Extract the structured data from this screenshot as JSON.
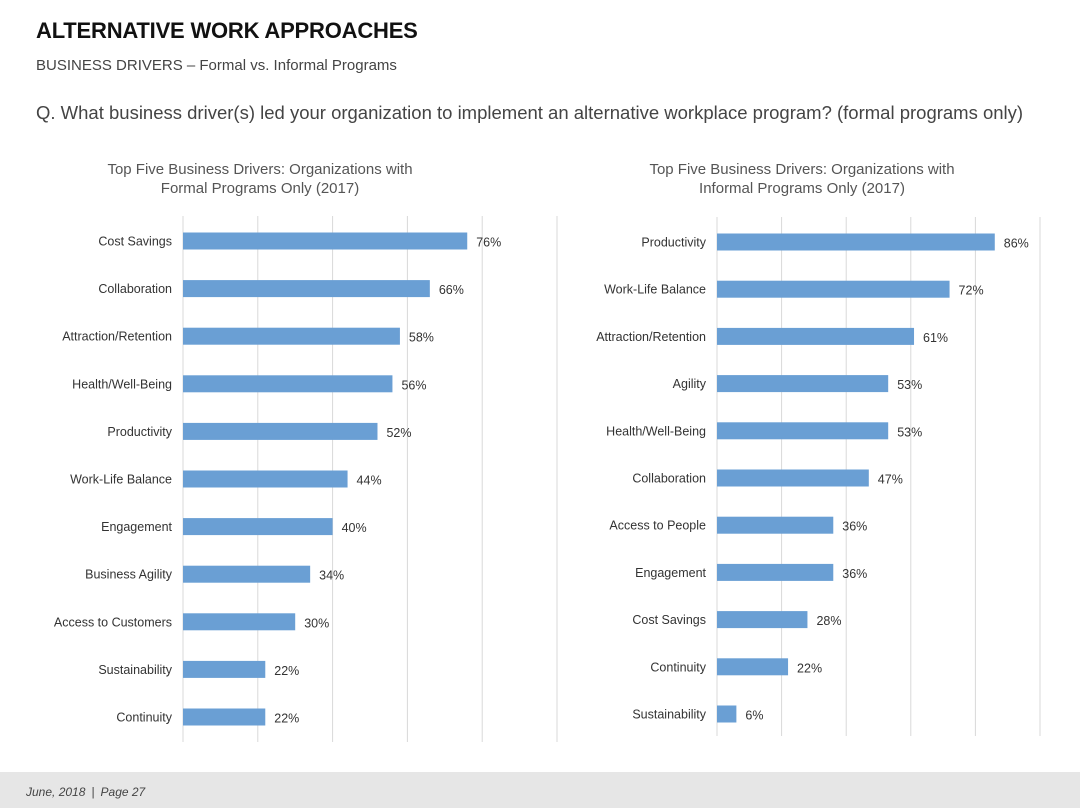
{
  "header": {
    "title": "ALTERNATIVE WORK APPROACHES",
    "subtitle": "BUSINESS DRIVERS – Formal vs. Informal Programs",
    "question": "Q. What business driver(s) led your organization to implement an alternative workplace program? (formal programs only)"
  },
  "footer": {
    "date": "June, 2018",
    "separator": "|",
    "page": "Page 27"
  },
  "colors": {
    "bar": "#6a9fd4",
    "grid": "#d9d9d9",
    "text": "#333333"
  },
  "chart_data": [
    {
      "type": "bar",
      "orientation": "horizontal",
      "title_line1": "Top Five Business Drivers: Organizations with",
      "title_line2": "Formal Programs Only (2017)",
      "categories": [
        "Cost Savings",
        "Collaboration",
        "Attraction/Retention",
        "Health/Well-Being",
        "Productivity",
        "Work-Life Balance",
        "Engagement",
        "Business Agility",
        "Access to Customers",
        "Sustainability",
        "Continuity"
      ],
      "values": [
        76,
        66,
        58,
        56,
        52,
        44,
        40,
        34,
        30,
        22,
        22
      ],
      "value_labels": [
        "76%",
        "66%",
        "58%",
        "56%",
        "52%",
        "44%",
        "40%",
        "34%",
        "30%",
        "22%",
        "22%"
      ],
      "xlim": [
        0,
        100
      ],
      "grid": true
    },
    {
      "type": "bar",
      "orientation": "horizontal",
      "title_line1": "Top Five Business Drivers: Organizations with",
      "title_line2": "Informal Programs Only (2017)",
      "categories": [
        "Productivity",
        "Work-Life Balance",
        "Attraction/Retention",
        "Agility",
        "Health/Well-Being",
        "Collaboration",
        "Access to People",
        "Engagement",
        "Cost Savings",
        "Continuity",
        "Sustainability"
      ],
      "values": [
        86,
        72,
        61,
        53,
        53,
        47,
        36,
        36,
        28,
        22,
        6
      ],
      "value_labels": [
        "86%",
        "72%",
        "61%",
        "53%",
        "53%",
        "47%",
        "36%",
        "36%",
        "28%",
        "22%",
        "6%"
      ],
      "xlim": [
        0,
        100
      ],
      "grid": true
    }
  ]
}
